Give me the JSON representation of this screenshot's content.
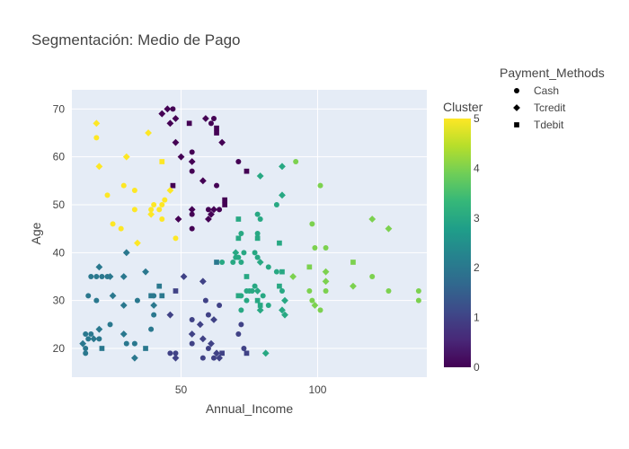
{
  "chart_data": {
    "type": "scatter",
    "title": "Segmentación: Medio de Pago",
    "xlabel": "Annual_Income",
    "ylabel": "Age",
    "xlim": [
      10,
      140
    ],
    "ylim": [
      14,
      74
    ],
    "x_ticks": [
      50,
      100
    ],
    "y_ticks": [
      20,
      30,
      40,
      50,
      60,
      70
    ],
    "grid": true,
    "colorbar": {
      "title": "Cluster",
      "min": 0,
      "max": 5,
      "ticks": [
        0,
        1,
        2,
        3,
        4,
        5
      ],
      "colorscale": "viridis"
    },
    "legend": {
      "title": "Payment_Methods",
      "placement": "top-right",
      "entries": [
        {
          "label": "Cash",
          "symbol": "circle"
        },
        {
          "label": "Tcredit",
          "symbol": "diamond"
        },
        {
          "label": "Tdebit",
          "symbol": "square"
        }
      ]
    },
    "points": [
      {
        "x": 43,
        "y": 69,
        "cluster": 0,
        "symbol": "diamond"
      },
      {
        "x": 45,
        "y": 70,
        "cluster": 0,
        "symbol": "diamond"
      },
      {
        "x": 47,
        "y": 70,
        "cluster": 0,
        "symbol": "circle"
      },
      {
        "x": 46,
        "y": 67,
        "cluster": 0,
        "symbol": "diamond"
      },
      {
        "x": 48,
        "y": 68,
        "cluster": 0,
        "symbol": "diamond"
      },
      {
        "x": 53,
        "y": 67,
        "cluster": 0,
        "symbol": "square"
      },
      {
        "x": 59,
        "y": 68,
        "cluster": 0,
        "symbol": "diamond"
      },
      {
        "x": 61,
        "y": 67,
        "cluster": 0,
        "symbol": "circle"
      },
      {
        "x": 62,
        "y": 68,
        "cluster": 0,
        "symbol": "circle"
      },
      {
        "x": 63,
        "y": 66,
        "cluster": 0,
        "symbol": "square"
      },
      {
        "x": 63,
        "y": 65,
        "cluster": 0,
        "symbol": "square"
      },
      {
        "x": 65,
        "y": 63,
        "cluster": 0,
        "symbol": "diamond"
      },
      {
        "x": 48,
        "y": 63,
        "cluster": 0,
        "symbol": "diamond"
      },
      {
        "x": 54,
        "y": 61,
        "cluster": 0,
        "symbol": "circle"
      },
      {
        "x": 50,
        "y": 60,
        "cluster": 0,
        "symbol": "diamond"
      },
      {
        "x": 54,
        "y": 59,
        "cluster": 0,
        "symbol": "diamond"
      },
      {
        "x": 54,
        "y": 57,
        "cluster": 0,
        "symbol": "circle"
      },
      {
        "x": 58,
        "y": 55,
        "cluster": 0,
        "symbol": "diamond"
      },
      {
        "x": 63,
        "y": 54,
        "cluster": 0,
        "symbol": "circle"
      },
      {
        "x": 66,
        "y": 51,
        "cluster": 0,
        "symbol": "square"
      },
      {
        "x": 66,
        "y": 50,
        "cluster": 0,
        "symbol": "square"
      },
      {
        "x": 54,
        "y": 49,
        "cluster": 0,
        "symbol": "diamond"
      },
      {
        "x": 54,
        "y": 48,
        "cluster": 0,
        "symbol": "circle"
      },
      {
        "x": 60,
        "y": 49,
        "cluster": 0,
        "symbol": "circle"
      },
      {
        "x": 61,
        "y": 48,
        "cluster": 0,
        "symbol": "diamond"
      },
      {
        "x": 60,
        "y": 47,
        "cluster": 0,
        "symbol": "diamond"
      },
      {
        "x": 62,
        "y": 49,
        "cluster": 0,
        "symbol": "diamond"
      },
      {
        "x": 64,
        "y": 49,
        "cluster": 0,
        "symbol": "circle"
      },
      {
        "x": 49,
        "y": 47,
        "cluster": 0,
        "symbol": "diamond"
      },
      {
        "x": 54,
        "y": 45,
        "cluster": 0,
        "symbol": "circle"
      },
      {
        "x": 47,
        "y": 54,
        "cluster": 0,
        "symbol": "square"
      },
      {
        "x": 71,
        "y": 59,
        "cluster": 0,
        "symbol": "circle"
      },
      {
        "x": 74,
        "y": 57,
        "cluster": 0,
        "symbol": "square"
      },
      {
        "x": 54,
        "y": 26,
        "cluster": 1,
        "symbol": "circle"
      },
      {
        "x": 60,
        "y": 27,
        "cluster": 1,
        "symbol": "circle"
      },
      {
        "x": 62,
        "y": 26,
        "cluster": 1,
        "symbol": "diamond"
      },
      {
        "x": 57,
        "y": 25,
        "cluster": 1,
        "symbol": "diamond"
      },
      {
        "x": 54,
        "y": 23,
        "cluster": 1,
        "symbol": "diamond"
      },
      {
        "x": 58,
        "y": 22,
        "cluster": 1,
        "symbol": "diamond"
      },
      {
        "x": 61,
        "y": 21,
        "cluster": 1,
        "symbol": "diamond"
      },
      {
        "x": 60,
        "y": 20,
        "cluster": 1,
        "symbol": "circle"
      },
      {
        "x": 54,
        "y": 21,
        "cluster": 1,
        "symbol": "circle"
      },
      {
        "x": 46,
        "y": 19,
        "cluster": 1,
        "symbol": "circle"
      },
      {
        "x": 48,
        "y": 19,
        "cluster": 1,
        "symbol": "circle"
      },
      {
        "x": 48,
        "y": 18,
        "cluster": 1,
        "symbol": "diamond"
      },
      {
        "x": 58,
        "y": 18,
        "cluster": 1,
        "symbol": "circle"
      },
      {
        "x": 62,
        "y": 18,
        "cluster": 1,
        "symbol": "circle"
      },
      {
        "x": 63,
        "y": 19,
        "cluster": 1,
        "symbol": "diamond"
      },
      {
        "x": 64,
        "y": 18,
        "cluster": 1,
        "symbol": "diamond"
      },
      {
        "x": 65,
        "y": 19,
        "cluster": 1,
        "symbol": "square"
      },
      {
        "x": 73,
        "y": 20,
        "cluster": 1,
        "symbol": "circle"
      },
      {
        "x": 74,
        "y": 19,
        "cluster": 1,
        "symbol": "square"
      },
      {
        "x": 71,
        "y": 23,
        "cluster": 1,
        "symbol": "circle"
      },
      {
        "x": 72,
        "y": 25,
        "cluster": 1,
        "symbol": "circle"
      },
      {
        "x": 46,
        "y": 27,
        "cluster": 1,
        "symbol": "diamond"
      },
      {
        "x": 48,
        "y": 32,
        "cluster": 1,
        "symbol": "square"
      },
      {
        "x": 58,
        "y": 34,
        "cluster": 1,
        "symbol": "diamond"
      },
      {
        "x": 51,
        "y": 35,
        "cluster": 1,
        "symbol": "diamond"
      },
      {
        "x": 59,
        "y": 30,
        "cluster": 1,
        "symbol": "circle"
      },
      {
        "x": 64,
        "y": 29,
        "cluster": 1,
        "symbol": "circle"
      },
      {
        "x": 17,
        "y": 35,
        "cluster": 2,
        "symbol": "circle"
      },
      {
        "x": 19,
        "y": 35,
        "cluster": 2,
        "symbol": "circle"
      },
      {
        "x": 20,
        "y": 37,
        "cluster": 2,
        "symbol": "diamond"
      },
      {
        "x": 21,
        "y": 35,
        "cluster": 2,
        "symbol": "circle"
      },
      {
        "x": 23,
        "y": 35,
        "cluster": 2,
        "symbol": "circle"
      },
      {
        "x": 24,
        "y": 35,
        "cluster": 2,
        "symbol": "diamond"
      },
      {
        "x": 29,
        "y": 35,
        "cluster": 2,
        "symbol": "diamond"
      },
      {
        "x": 30,
        "y": 40,
        "cluster": 2,
        "symbol": "diamond"
      },
      {
        "x": 37,
        "y": 36,
        "cluster": 2,
        "symbol": "diamond"
      },
      {
        "x": 16,
        "y": 31,
        "cluster": 2,
        "symbol": "circle"
      },
      {
        "x": 19,
        "y": 30,
        "cluster": 2,
        "symbol": "circle"
      },
      {
        "x": 25,
        "y": 31,
        "cluster": 2,
        "symbol": "diamond"
      },
      {
        "x": 29,
        "y": 29,
        "cluster": 2,
        "symbol": "diamond"
      },
      {
        "x": 34,
        "y": 30,
        "cluster": 2,
        "symbol": "circle"
      },
      {
        "x": 39,
        "y": 31,
        "cluster": 2,
        "symbol": "square"
      },
      {
        "x": 40,
        "y": 31,
        "cluster": 2,
        "symbol": "circle"
      },
      {
        "x": 42,
        "y": 33,
        "cluster": 2,
        "symbol": "square"
      },
      {
        "x": 43,
        "y": 31,
        "cluster": 2,
        "symbol": "square"
      },
      {
        "x": 40,
        "y": 29,
        "cluster": 2,
        "symbol": "diamond"
      },
      {
        "x": 40,
        "y": 27,
        "cluster": 2,
        "symbol": "circle"
      },
      {
        "x": 15,
        "y": 23,
        "cluster": 2,
        "symbol": "circle"
      },
      {
        "x": 16,
        "y": 22,
        "cluster": 2,
        "symbol": "circle"
      },
      {
        "x": 17,
        "y": 23,
        "cluster": 2,
        "symbol": "circle"
      },
      {
        "x": 18,
        "y": 22,
        "cluster": 2,
        "symbol": "diamond"
      },
      {
        "x": 20,
        "y": 24,
        "cluster": 2,
        "symbol": "diamond"
      },
      {
        "x": 20,
        "y": 22,
        "cluster": 2,
        "symbol": "circle"
      },
      {
        "x": 24,
        "y": 25,
        "cluster": 2,
        "symbol": "circle"
      },
      {
        "x": 29,
        "y": 23,
        "cluster": 2,
        "symbol": "diamond"
      },
      {
        "x": 30,
        "y": 21,
        "cluster": 2,
        "symbol": "circle"
      },
      {
        "x": 33,
        "y": 21,
        "cluster": 2,
        "symbol": "circle"
      },
      {
        "x": 14,
        "y": 21,
        "cluster": 2,
        "symbol": "diamond"
      },
      {
        "x": 15,
        "y": 20,
        "cluster": 2,
        "symbol": "circle"
      },
      {
        "x": 15,
        "y": 19,
        "cluster": 2,
        "symbol": "circle"
      },
      {
        "x": 21,
        "y": 20,
        "cluster": 2,
        "symbol": "square"
      },
      {
        "x": 33,
        "y": 18,
        "cluster": 2,
        "symbol": "diamond"
      },
      {
        "x": 37,
        "y": 20,
        "cluster": 2,
        "symbol": "square"
      },
      {
        "x": 39,
        "y": 24,
        "cluster": 2,
        "symbol": "circle"
      },
      {
        "x": 63,
        "y": 38,
        "cluster": 2,
        "symbol": "square"
      },
      {
        "x": 71,
        "y": 47,
        "cluster": 3,
        "symbol": "square"
      },
      {
        "x": 72,
        "y": 44,
        "cluster": 3,
        "symbol": "circle"
      },
      {
        "x": 71,
        "y": 43,
        "cluster": 3,
        "symbol": "square"
      },
      {
        "x": 78,
        "y": 48,
        "cluster": 3,
        "symbol": "circle"
      },
      {
        "x": 79,
        "y": 47,
        "cluster": 3,
        "symbol": "circle"
      },
      {
        "x": 78,
        "y": 44,
        "cluster": 3,
        "symbol": "circle"
      },
      {
        "x": 78,
        "y": 43,
        "cluster": 3,
        "symbol": "square"
      },
      {
        "x": 85,
        "y": 50,
        "cluster": 3,
        "symbol": "circle"
      },
      {
        "x": 87,
        "y": 52,
        "cluster": 3,
        "symbol": "diamond"
      },
      {
        "x": 79,
        "y": 56,
        "cluster": 3,
        "symbol": "diamond"
      },
      {
        "x": 87,
        "y": 58,
        "cluster": 3,
        "symbol": "diamond"
      },
      {
        "x": 86,
        "y": 42,
        "cluster": 3,
        "symbol": "square"
      },
      {
        "x": 65,
        "y": 38,
        "cluster": 3,
        "symbol": "circle"
      },
      {
        "x": 69,
        "y": 38,
        "cluster": 3,
        "symbol": "circle"
      },
      {
        "x": 70,
        "y": 39,
        "cluster": 3,
        "symbol": "circle"
      },
      {
        "x": 70,
        "y": 40,
        "cluster": 3,
        "symbol": "diamond"
      },
      {
        "x": 71,
        "y": 39,
        "cluster": 3,
        "symbol": "circle"
      },
      {
        "x": 72,
        "y": 38,
        "cluster": 3,
        "symbol": "circle"
      },
      {
        "x": 73,
        "y": 40,
        "cluster": 3,
        "symbol": "circle"
      },
      {
        "x": 77,
        "y": 40,
        "cluster": 3,
        "symbol": "circle"
      },
      {
        "x": 78,
        "y": 39,
        "cluster": 3,
        "symbol": "circle"
      },
      {
        "x": 79,
        "y": 38,
        "cluster": 3,
        "symbol": "diamond"
      },
      {
        "x": 82,
        "y": 37,
        "cluster": 3,
        "symbol": "circle"
      },
      {
        "x": 85,
        "y": 36,
        "cluster": 3,
        "symbol": "circle"
      },
      {
        "x": 87,
        "y": 36,
        "cluster": 3,
        "symbol": "square"
      },
      {
        "x": 74,
        "y": 35,
        "cluster": 3,
        "symbol": "square"
      },
      {
        "x": 71,
        "y": 31,
        "cluster": 3,
        "symbol": "square"
      },
      {
        "x": 72,
        "y": 31,
        "cluster": 3,
        "symbol": "circle"
      },
      {
        "x": 74,
        "y": 32,
        "cluster": 3,
        "symbol": "circle"
      },
      {
        "x": 75,
        "y": 32,
        "cluster": 3,
        "symbol": "circle"
      },
      {
        "x": 76,
        "y": 32,
        "cluster": 3,
        "symbol": "circle"
      },
      {
        "x": 77,
        "y": 33,
        "cluster": 3,
        "symbol": "circle"
      },
      {
        "x": 78,
        "y": 32,
        "cluster": 3,
        "symbol": "diamond"
      },
      {
        "x": 80,
        "y": 31,
        "cluster": 3,
        "symbol": "circle"
      },
      {
        "x": 86,
        "y": 33,
        "cluster": 3,
        "symbol": "square"
      },
      {
        "x": 87,
        "y": 32,
        "cluster": 3,
        "symbol": "circle"
      },
      {
        "x": 74,
        "y": 30,
        "cluster": 3,
        "symbol": "circle"
      },
      {
        "x": 78,
        "y": 30,
        "cluster": 3,
        "symbol": "square"
      },
      {
        "x": 79,
        "y": 29,
        "cluster": 3,
        "symbol": "square"
      },
      {
        "x": 82,
        "y": 29,
        "cluster": 3,
        "symbol": "circle"
      },
      {
        "x": 88,
        "y": 30,
        "cluster": 3,
        "symbol": "diamond"
      },
      {
        "x": 72,
        "y": 28,
        "cluster": 3,
        "symbol": "circle"
      },
      {
        "x": 79,
        "y": 28,
        "cluster": 3,
        "symbol": "diamond"
      },
      {
        "x": 87,
        "y": 28,
        "cluster": 3,
        "symbol": "diamond"
      },
      {
        "x": 88,
        "y": 27,
        "cluster": 3,
        "symbol": "diamond"
      },
      {
        "x": 81,
        "y": 19,
        "cluster": 3,
        "symbol": "diamond"
      },
      {
        "x": 92,
        "y": 59,
        "cluster": 4,
        "symbol": "circle"
      },
      {
        "x": 101,
        "y": 54,
        "cluster": 4,
        "symbol": "circle"
      },
      {
        "x": 98,
        "y": 46,
        "cluster": 4,
        "symbol": "circle"
      },
      {
        "x": 99,
        "y": 41,
        "cluster": 4,
        "symbol": "circle"
      },
      {
        "x": 103,
        "y": 41,
        "cluster": 4,
        "symbol": "circle"
      },
      {
        "x": 97,
        "y": 37,
        "cluster": 4,
        "symbol": "square"
      },
      {
        "x": 103,
        "y": 36,
        "cluster": 4,
        "symbol": "diamond"
      },
      {
        "x": 103,
        "y": 34,
        "cluster": 4,
        "symbol": "diamond"
      },
      {
        "x": 91,
        "y": 35,
        "cluster": 4,
        "symbol": "diamond"
      },
      {
        "x": 97,
        "y": 32,
        "cluster": 4,
        "symbol": "circle"
      },
      {
        "x": 103,
        "y": 32,
        "cluster": 4,
        "symbol": "circle"
      },
      {
        "x": 98,
        "y": 30,
        "cluster": 4,
        "symbol": "circle"
      },
      {
        "x": 99,
        "y": 29,
        "cluster": 4,
        "symbol": "diamond"
      },
      {
        "x": 101,
        "y": 28,
        "cluster": 4,
        "symbol": "circle"
      },
      {
        "x": 113,
        "y": 38,
        "cluster": 4,
        "symbol": "square"
      },
      {
        "x": 120,
        "y": 35,
        "cluster": 4,
        "symbol": "circle"
      },
      {
        "x": 113,
        "y": 33,
        "cluster": 4,
        "symbol": "diamond"
      },
      {
        "x": 126,
        "y": 32,
        "cluster": 4,
        "symbol": "circle"
      },
      {
        "x": 137,
        "y": 32,
        "cluster": 4,
        "symbol": "circle"
      },
      {
        "x": 137,
        "y": 30,
        "cluster": 4,
        "symbol": "circle"
      },
      {
        "x": 120,
        "y": 47,
        "cluster": 4,
        "symbol": "diamond"
      },
      {
        "x": 126,
        "y": 45,
        "cluster": 4,
        "symbol": "diamond"
      },
      {
        "x": 19,
        "y": 67,
        "cluster": 5,
        "symbol": "diamond"
      },
      {
        "x": 19,
        "y": 64,
        "cluster": 5,
        "symbol": "circle"
      },
      {
        "x": 20,
        "y": 58,
        "cluster": 5,
        "symbol": "diamond"
      },
      {
        "x": 30,
        "y": 60,
        "cluster": 5,
        "symbol": "diamond"
      },
      {
        "x": 38,
        "y": 65,
        "cluster": 5,
        "symbol": "diamond"
      },
      {
        "x": 43,
        "y": 59,
        "cluster": 5,
        "symbol": "square"
      },
      {
        "x": 29,
        "y": 54,
        "cluster": 5,
        "symbol": "circle"
      },
      {
        "x": 33,
        "y": 53,
        "cluster": 5,
        "symbol": "circle"
      },
      {
        "x": 23,
        "y": 52,
        "cluster": 5,
        "symbol": "circle"
      },
      {
        "x": 33,
        "y": 49,
        "cluster": 5,
        "symbol": "circle"
      },
      {
        "x": 39,
        "y": 49,
        "cluster": 5,
        "symbol": "circle"
      },
      {
        "x": 39,
        "y": 48,
        "cluster": 5,
        "symbol": "diamond"
      },
      {
        "x": 40,
        "y": 50,
        "cluster": 5,
        "symbol": "circle"
      },
      {
        "x": 42,
        "y": 49,
        "cluster": 5,
        "symbol": "circle"
      },
      {
        "x": 43,
        "y": 50,
        "cluster": 5,
        "symbol": "circle"
      },
      {
        "x": 44,
        "y": 51,
        "cluster": 5,
        "symbol": "circle"
      },
      {
        "x": 46,
        "y": 53,
        "cluster": 5,
        "symbol": "diamond"
      },
      {
        "x": 43,
        "y": 47,
        "cluster": 5,
        "symbol": "circle"
      },
      {
        "x": 25,
        "y": 46,
        "cluster": 5,
        "symbol": "circle"
      },
      {
        "x": 28,
        "y": 45,
        "cluster": 5,
        "symbol": "circle"
      },
      {
        "x": 34,
        "y": 42,
        "cluster": 5,
        "symbol": "diamond"
      },
      {
        "x": 48,
        "y": 43,
        "cluster": 5,
        "symbol": "circle"
      }
    ]
  }
}
